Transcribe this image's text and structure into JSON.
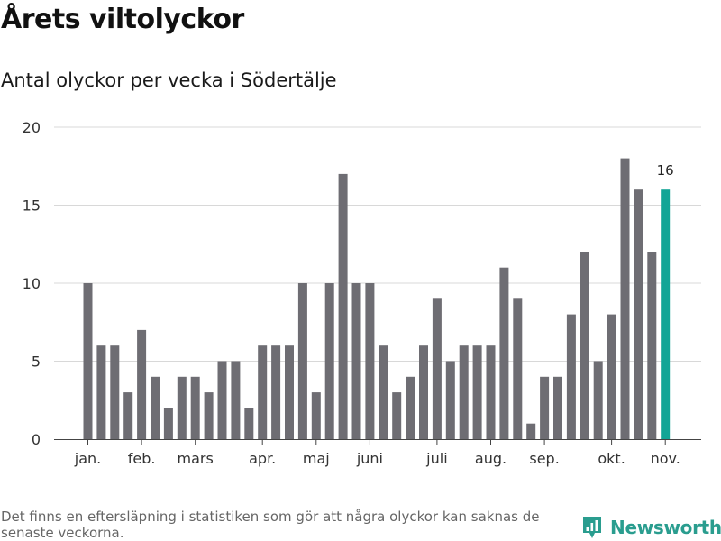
{
  "title": "Årets viltolyckor",
  "subtitle": "Antal olyckor per vecka i Södertälje",
  "footnote": "Det finns en eftersläpning i statistiken som gör att några olyckor kan saknas de senaste veckorna.",
  "brand": {
    "name": "Newsworthy",
    "icon": "newsworthy-logo-icon",
    "color": "#2a9d8f"
  },
  "colors": {
    "bar": "#6e6d73",
    "highlight": "#12a596",
    "grid": "#d8d8d8",
    "axis": "#444444"
  },
  "chart_data": {
    "type": "bar",
    "title": "Årets viltolyckor",
    "subtitle": "Antal olyckor per vecka i Södertälje",
    "xlabel": "",
    "ylabel": "",
    "ylim": [
      0,
      20
    ],
    "yticks": [
      "0",
      "5",
      "10",
      "15",
      "20"
    ],
    "grid": true,
    "values": [
      10,
      6,
      6,
      3,
      7,
      4,
      2,
      4,
      4,
      3,
      5,
      5,
      2,
      6,
      6,
      6,
      10,
      3,
      10,
      17,
      10,
      10,
      6,
      3,
      4,
      6,
      9,
      5,
      6,
      6,
      6,
      11,
      9,
      1,
      4,
      4,
      8,
      12,
      5,
      8,
      18,
      16,
      12,
      16
    ],
    "highlight_index": 43,
    "highlight_label": "16",
    "month_ticks": [
      {
        "label": "jan.",
        "index": 0
      },
      {
        "label": "feb.",
        "index": 4
      },
      {
        "label": "mars",
        "index": 8
      },
      {
        "label": "apr.",
        "index": 13
      },
      {
        "label": "maj",
        "index": 17
      },
      {
        "label": "juni",
        "index": 21
      },
      {
        "label": "juli",
        "index": 26
      },
      {
        "label": "aug.",
        "index": 30
      },
      {
        "label": "sep.",
        "index": 34
      },
      {
        "label": "okt.",
        "index": 39
      },
      {
        "label": "nov.",
        "index": 43
      }
    ]
  }
}
